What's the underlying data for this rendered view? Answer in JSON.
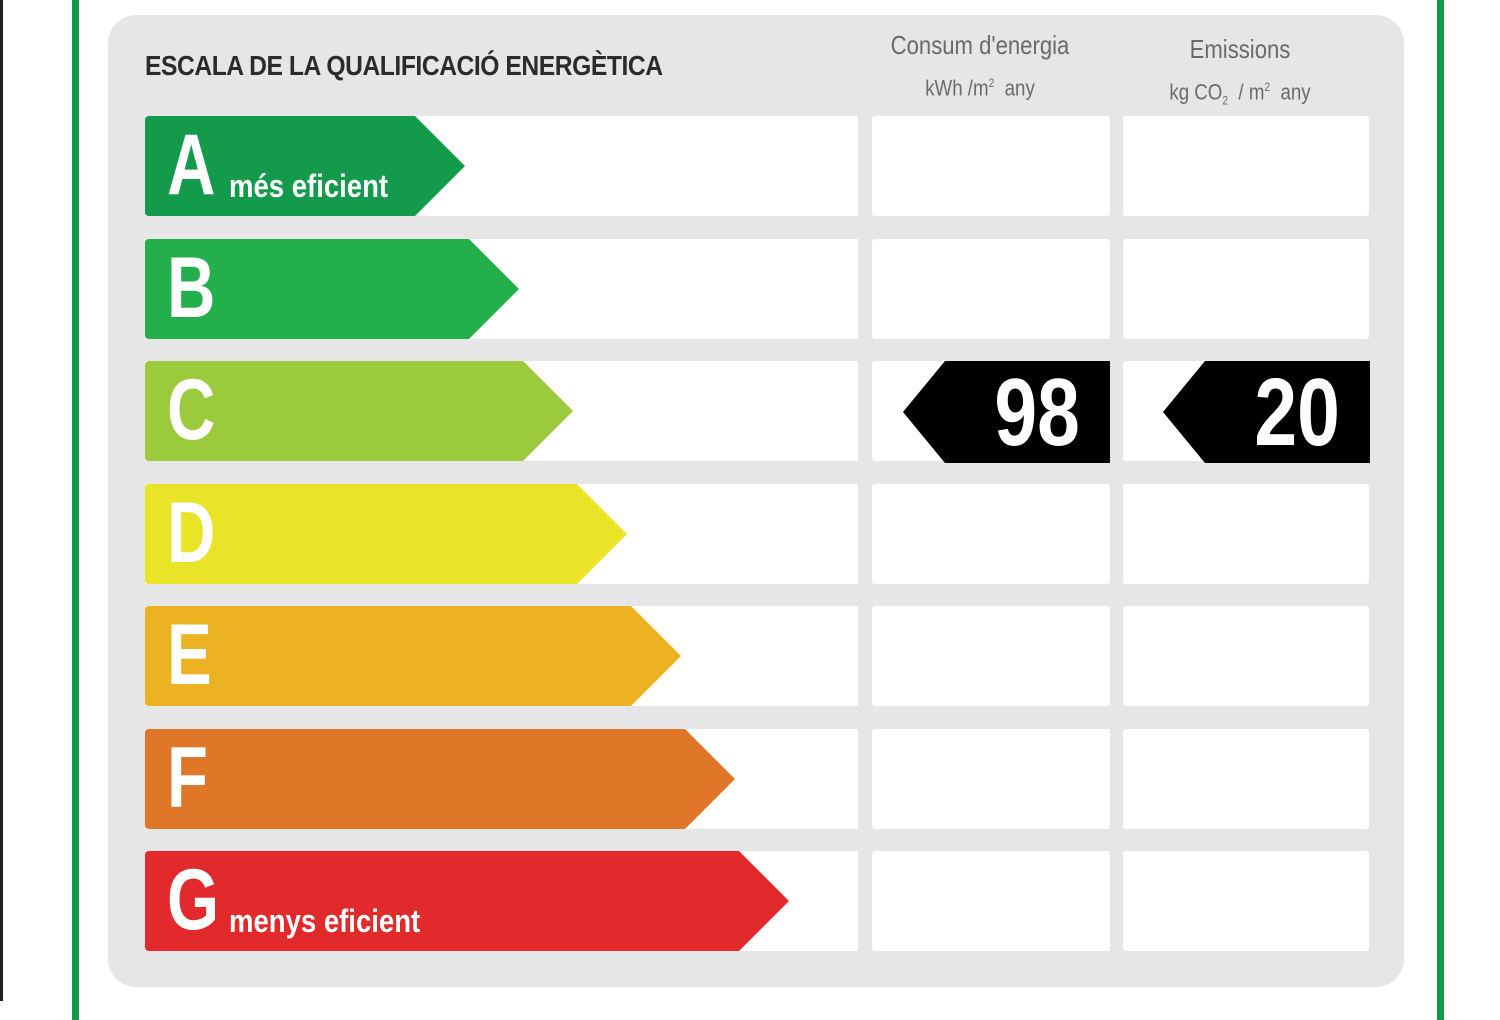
{
  "label": {
    "title": "ESCALA DE LA QUALIFICACIÓ ENERGÈTICA",
    "consumption_header": {
      "title": "Consum d'energia",
      "unit_main": "kWh /m",
      "unit_sup": "2",
      "unit_tail": "any"
    },
    "emissions_header": {
      "title": "Emissions",
      "unit_kg": "kg CO",
      "unit_sub": "2",
      "unit_mid": "/ m",
      "unit_sup": "2",
      "unit_tail": "any"
    },
    "classes": [
      {
        "letter": "A",
        "note": "més eficient",
        "color": "#139a4a"
      },
      {
        "letter": "B",
        "note": "",
        "color": "#23b04c"
      },
      {
        "letter": "C",
        "note": "",
        "color": "#9bca3c"
      },
      {
        "letter": "D",
        "note": "",
        "color": "#e9e428"
      },
      {
        "letter": "E",
        "note": "",
        "color": "#ecb221"
      },
      {
        "letter": "F",
        "note": "",
        "color": "#e07627"
      },
      {
        "letter": "G",
        "note": "menys eficient",
        "color": "#e2292c"
      }
    ],
    "rating": {
      "class": "C",
      "consumption_value": "98",
      "emissions_value": "20"
    },
    "colors": {
      "frame": "#129a49",
      "panel": "#e6e6e6",
      "marker": "#000000"
    }
  }
}
